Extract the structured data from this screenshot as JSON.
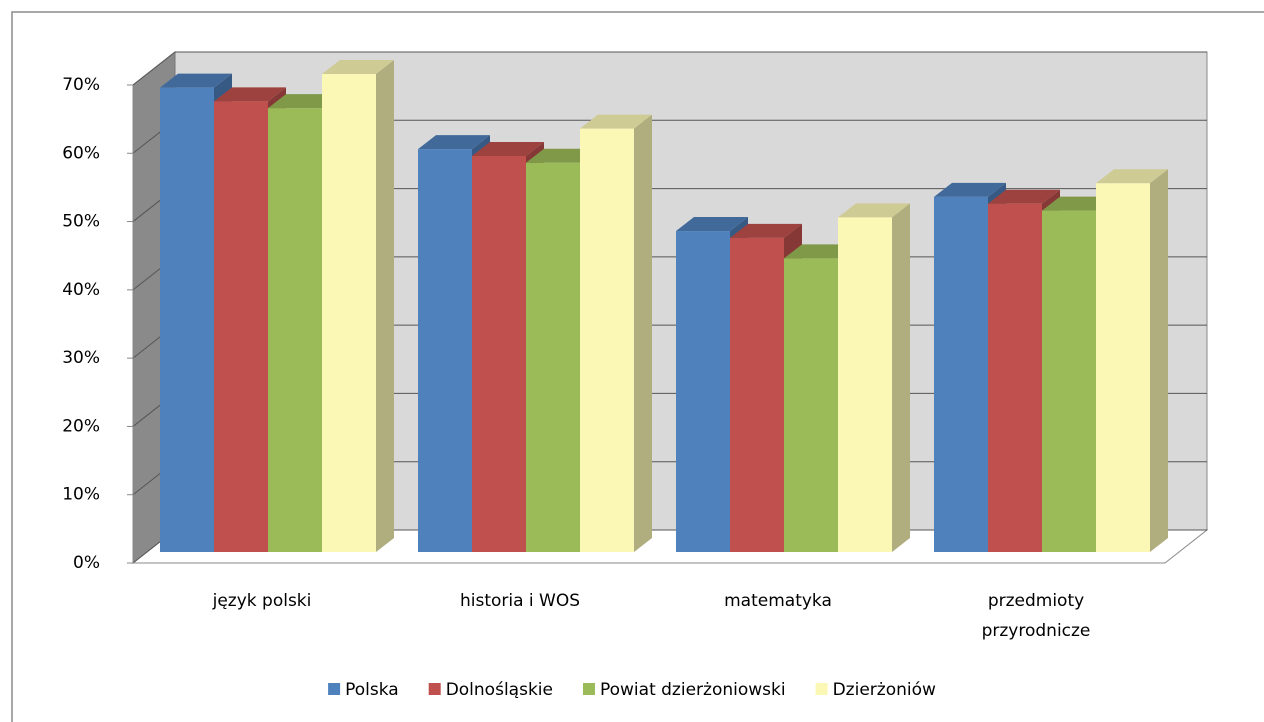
{
  "chart_data": {
    "type": "bar3d",
    "categories": [
      "język polski",
      "historia i WOS",
      "matematyka",
      "przedmioty przyrodnicze"
    ],
    "series": [
      {
        "name": "Polska",
        "color": "#4f81bd",
        "values": [
          68,
          59,
          47,
          52
        ]
      },
      {
        "name": "Dolnośląskie",
        "color": "#c0504d",
        "values": [
          66,
          58,
          46,
          51
        ]
      },
      {
        "name": "Powiat dzierżoniowski",
        "color": "#9bbb59",
        "values": [
          65,
          57,
          43,
          50
        ]
      },
      {
        "name": "Dzierżoniów",
        "color": "#fbf7b5",
        "values": [
          70,
          62,
          49,
          54
        ]
      }
    ],
    "ylim": [
      0,
      70
    ],
    "yticks": [
      {
        "value": 0,
        "label": "0%"
      },
      {
        "value": 10,
        "label": "10%"
      },
      {
        "value": 20,
        "label": "20%"
      },
      {
        "value": 30,
        "label": "30%"
      },
      {
        "value": 40,
        "label": "40%"
      },
      {
        "value": 50,
        "label": "50%"
      },
      {
        "value": 60,
        "label": "60%"
      },
      {
        "value": 70,
        "label": "70%"
      }
    ],
    "grid": true,
    "legend": "bottom"
  }
}
